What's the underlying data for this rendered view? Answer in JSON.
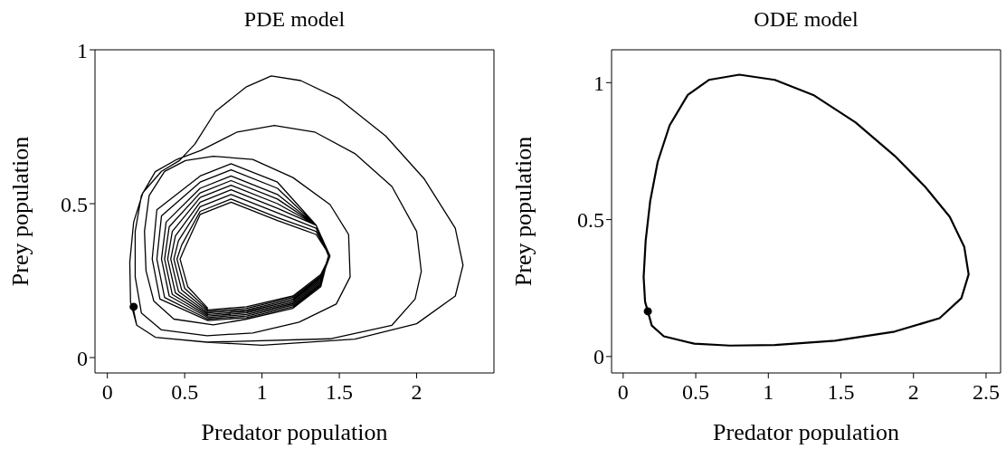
{
  "chart_data": [
    {
      "type": "line",
      "title": "PDE model",
      "xlabel": "Predator population",
      "ylabel": "Prey population",
      "xlim": [
        -0.08,
        2.5
      ],
      "ylim": [
        -0.05,
        1
      ],
      "xticks": [
        0,
        0.5,
        1,
        1.5,
        2
      ],
      "yticks": [
        0,
        0.5,
        1
      ],
      "marker": "none",
      "series": [
        {
          "color": "#000000",
          "x": [
            0.165,
            0.19,
            0.31,
            0.645,
            1.0,
            1.6,
            2.0,
            2.25,
            2.3,
            2.25,
            2.05,
            1.8,
            1.5,
            1.25,
            1.06,
            0.9,
            0.7,
            0.565,
            0.466,
            0.35,
            0.23,
            0.17,
            0.145,
            0.15,
            0.19,
            0.31,
            0.645,
            1.44,
            1.84,
            1.99,
            2.03,
            2.0,
            1.84,
            1.6,
            1.34,
            1.08,
            0.84,
            0.605,
            0.45,
            0.31,
            0.22,
            0.18,
            0.18,
            0.22,
            0.35,
            0.645,
            0.94,
            1.24,
            1.48,
            1.57,
            1.56,
            1.44,
            1.2,
            0.94,
            0.685,
            0.505,
            0.37,
            0.27,
            0.24,
            0.25,
            0.3,
            0.43,
            0.685,
            0.9,
            1.2,
            1.38,
            1.43,
            1.35,
            1.1,
            0.8,
            0.6,
            0.32,
            0.29,
            0.34,
            0.65,
            0.9,
            1.2,
            1.38,
            1.43,
            1.35,
            1.1,
            0.8,
            0.6,
            0.35,
            0.32,
            0.37,
            0.65,
            0.9,
            1.2,
            1.38,
            1.43,
            1.35,
            1.1,
            0.8,
            0.6,
            0.38,
            0.35,
            0.4,
            0.65,
            0.9,
            1.2,
            1.38,
            1.43,
            1.35,
            1.1,
            0.8,
            0.6,
            0.4,
            0.37,
            0.42,
            0.65,
            0.9,
            1.2,
            1.38,
            1.44,
            1.35,
            1.1,
            0.8,
            0.6,
            0.42,
            0.39,
            0.44,
            0.65,
            0.9,
            1.2,
            1.38,
            1.44,
            1.35,
            1.1,
            0.8,
            0.6,
            0.44,
            0.41,
            0.46,
            0.65,
            0.9,
            1.2,
            1.38,
            1.44,
            1.35,
            1.1,
            0.8,
            0.6,
            0.46,
            0.43,
            0.48,
            0.65,
            0.9,
            1.2,
            1.38,
            1.44,
            1.35,
            1.1,
            0.8,
            0.6,
            0.48,
            0.45,
            0.5,
            0.65,
            0.9,
            1.2,
            1.38,
            1.44,
            1.35,
            1.1,
            0.8,
            0.6,
            0.5,
            0.47,
            0.52,
            0.65
          ],
          "values": [
            0.165,
            0.105,
            0.066,
            0.05,
            0.04,
            0.06,
            0.11,
            0.2,
            0.3,
            0.42,
            0.58,
            0.72,
            0.84,
            0.9,
            0.915,
            0.88,
            0.8,
            0.693,
            0.64,
            0.605,
            0.536,
            0.44,
            0.31,
            0.18,
            0.105,
            0.066,
            0.05,
            0.061,
            0.105,
            0.19,
            0.28,
            0.41,
            0.556,
            0.663,
            0.733,
            0.754,
            0.733,
            0.673,
            0.644,
            0.604,
            0.526,
            0.41,
            0.262,
            0.145,
            0.09,
            0.071,
            0.08,
            0.115,
            0.174,
            0.262,
            0.4,
            0.497,
            0.585,
            0.644,
            0.654,
            0.64,
            0.605,
            0.526,
            0.41,
            0.282,
            0.184,
            0.125,
            0.106,
            0.125,
            0.16,
            0.23,
            0.33,
            0.43,
            0.57,
            0.63,
            0.59,
            0.48,
            0.32,
            0.19,
            0.12,
            0.13,
            0.165,
            0.235,
            0.33,
            0.43,
            0.55,
            0.61,
            0.57,
            0.46,
            0.32,
            0.195,
            0.125,
            0.135,
            0.17,
            0.24,
            0.33,
            0.43,
            0.53,
            0.59,
            0.55,
            0.44,
            0.32,
            0.2,
            0.13,
            0.14,
            0.175,
            0.245,
            0.33,
            0.43,
            0.515,
            0.575,
            0.535,
            0.425,
            0.32,
            0.205,
            0.135,
            0.145,
            0.18,
            0.25,
            0.33,
            0.43,
            0.5,
            0.56,
            0.52,
            0.41,
            0.32,
            0.21,
            0.14,
            0.15,
            0.185,
            0.255,
            0.33,
            0.43,
            0.485,
            0.545,
            0.505,
            0.395,
            0.32,
            0.215,
            0.145,
            0.155,
            0.19,
            0.26,
            0.33,
            0.42,
            0.47,
            0.53,
            0.49,
            0.38,
            0.32,
            0.22,
            0.15,
            0.16,
            0.195,
            0.265,
            0.33,
            0.41,
            0.455,
            0.515,
            0.475,
            0.365,
            0.32,
            0.225,
            0.155,
            0.165,
            0.2,
            0.27,
            0.33,
            0.4,
            0.445,
            0.505,
            0.465,
            0.355,
            0.32,
            0.23,
            0.16
          ]
        },
        {
          "type": "scatter",
          "marker": "circle",
          "color": "#000000",
          "x": [
            0.17
          ],
          "values": [
            0.165
          ]
        }
      ]
    },
    {
      "type": "line",
      "title": "ODE model",
      "xlabel": "Predator population",
      "ylabel": "Prey population",
      "xlim": [
        -0.08,
        2.6
      ],
      "ylim": [
        -0.06,
        1.12
      ],
      "xticks": [
        0,
        0.5,
        1,
        1.5,
        2,
        2.5
      ],
      "yticks": [
        0,
        0.5,
        1
      ],
      "marker": "none",
      "series": [
        {
          "color": "#000000",
          "x": [
            0.17,
            0.197,
            0.28,
            0.49,
            0.735,
            1.045,
            1.46,
            1.87,
            2.18,
            2.33,
            2.38,
            2.35,
            2.25,
            2.08,
            1.87,
            1.6,
            1.31,
            1.045,
            0.8,
            0.59,
            0.445,
            0.32,
            0.238,
            0.186,
            0.155,
            0.141,
            0.151,
            0.166
          ],
          "values": [
            0.165,
            0.113,
            0.074,
            0.047,
            0.04,
            0.042,
            0.058,
            0.091,
            0.14,
            0.213,
            0.3,
            0.4,
            0.51,
            0.62,
            0.733,
            0.855,
            0.955,
            1.01,
            1.029,
            1.01,
            0.955,
            0.844,
            0.711,
            0.567,
            0.423,
            0.29,
            0.2,
            0.172
          ]
        },
        {
          "type": "scatter",
          "marker": "circle",
          "color": "#000000",
          "x": [
            0.17
          ],
          "values": [
            0.165
          ]
        }
      ]
    }
  ]
}
